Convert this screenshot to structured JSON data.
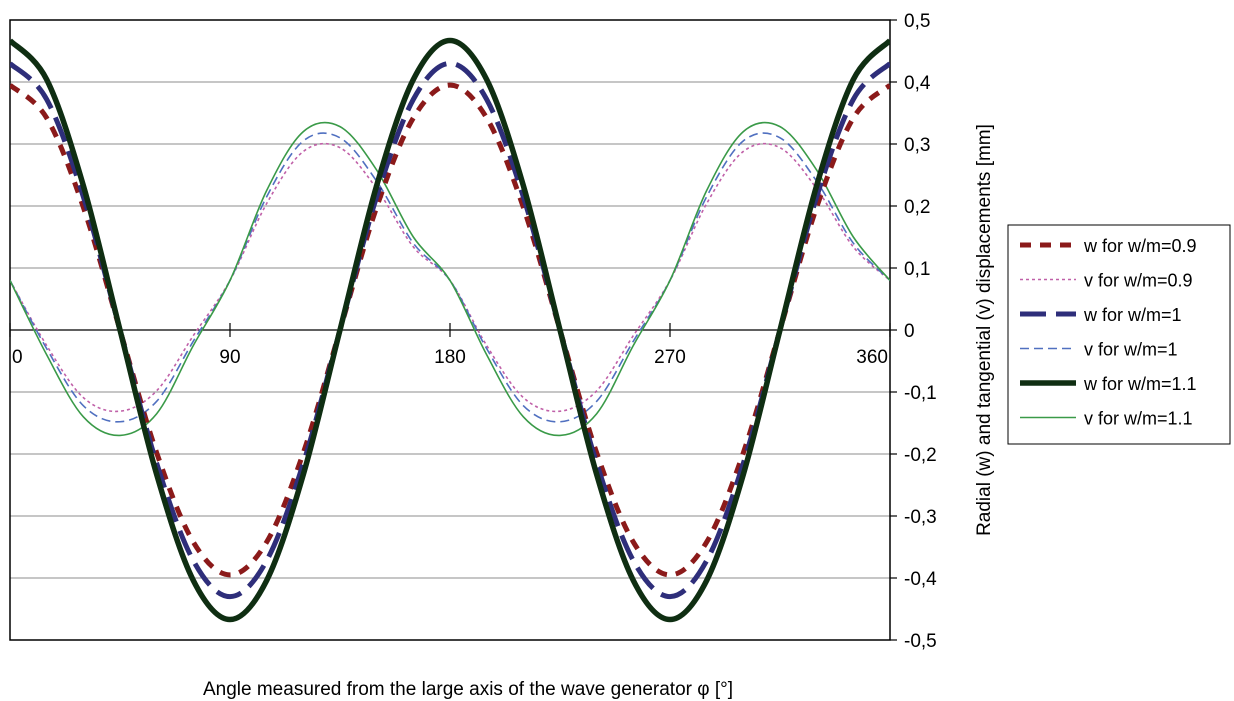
{
  "chart_data": {
    "type": "line",
    "xlabel": "Angle measured from the large axis of the wave generator φ [°]",
    "ylabel": "Radial (w) and tangential (v) displacements [mm]",
    "xlim": [
      0,
      360
    ],
    "ylim": [
      -0.5,
      0.5
    ],
    "x_ticks": [
      {
        "value": 0,
        "label": "0"
      },
      {
        "value": 90,
        "label": "90"
      },
      {
        "value": 180,
        "label": "180"
      },
      {
        "value": 270,
        "label": "270"
      },
      {
        "value": 360,
        "label": "360"
      }
    ],
    "y_ticks": [
      {
        "value": 0.5,
        "label": "0,5"
      },
      {
        "value": 0.4,
        "label": "0,4"
      },
      {
        "value": 0.3,
        "label": "0,3"
      },
      {
        "value": 0.2,
        "label": "0,2"
      },
      {
        "value": 0.1,
        "label": "0,1"
      },
      {
        "value": 0,
        "label": "0"
      },
      {
        "value": -0.1,
        "label": "-0,1"
      },
      {
        "value": -0.2,
        "label": "-0,2"
      },
      {
        "value": -0.3,
        "label": "-0,3"
      },
      {
        "value": -0.4,
        "label": "-0,4"
      },
      {
        "value": -0.5,
        "label": "-0,5"
      }
    ],
    "grid": {
      "horizontal": true,
      "vertical": false
    },
    "legend_position": "right",
    "x": [
      0,
      15,
      30,
      45,
      60,
      75,
      90,
      105,
      120,
      135,
      150,
      165,
      180,
      195,
      210,
      225,
      240,
      255,
      270,
      285,
      300,
      315,
      330,
      345,
      360
    ],
    "series": [
      {
        "name": "w  for w/m=0.9",
        "color": "#8b1a1a",
        "dash": "dashed",
        "weight": "thick",
        "values": [
          0.395,
          0.342,
          0.198,
          0.0,
          -0.198,
          -0.342,
          -0.395,
          -0.342,
          -0.198,
          0.0,
          0.198,
          0.342,
          0.395,
          0.342,
          0.198,
          0.0,
          -0.198,
          -0.342,
          -0.395,
          -0.342,
          -0.198,
          0.0,
          0.198,
          0.342,
          0.395
        ]
      },
      {
        "name": "v for w/m=0.9",
        "color": "#c060a8",
        "dash": "dotted",
        "weight": "thin",
        "values": [
          0.08,
          -0.025,
          -0.109,
          -0.131,
          -0.098,
          -0.009,
          0.08,
          0.204,
          0.288,
          0.294,
          0.228,
          0.134,
          0.08,
          -0.025,
          -0.109,
          -0.131,
          -0.098,
          -0.009,
          0.08,
          0.204,
          0.288,
          0.294,
          0.228,
          0.134,
          0.08
        ]
      },
      {
        "name": "w for w/m=1",
        "color": "#2e2e7a",
        "dash": "long-dash",
        "weight": "thick",
        "values": [
          0.43,
          0.372,
          0.215,
          0.0,
          -0.215,
          -0.372,
          -0.43,
          -0.372,
          -0.215,
          0.0,
          0.215,
          0.372,
          0.43,
          0.372,
          0.215,
          0.0,
          -0.215,
          -0.372,
          -0.43,
          -0.372,
          -0.215,
          0.0,
          0.215,
          0.372,
          0.43
        ]
      },
      {
        "name": "v for w/m=1",
        "color": "#5070c0",
        "dash": "dashed",
        "weight": "thin",
        "values": [
          0.08,
          -0.03,
          -0.122,
          -0.148,
          -0.115,
          -0.018,
          0.08,
          0.215,
          0.305,
          0.31,
          0.24,
          0.14,
          0.08,
          -0.03,
          -0.122,
          -0.148,
          -0.115,
          -0.018,
          0.08,
          0.215,
          0.305,
          0.31,
          0.24,
          0.14,
          0.08
        ]
      },
      {
        "name": "w for w/m=1.1",
        "color": "#0f2e12",
        "dash": "solid",
        "weight": "heavy",
        "values": [
          0.467,
          0.404,
          0.233,
          0.0,
          -0.233,
          -0.404,
          -0.467,
          -0.404,
          -0.233,
          0.0,
          0.233,
          0.404,
          0.467,
          0.404,
          0.233,
          0.0,
          -0.233,
          -0.404,
          -0.467,
          -0.404,
          -0.233,
          0.0,
          0.233,
          0.404,
          0.467
        ]
      },
      {
        "name": "v for w/m=1.1",
        "color": "#3a9a48",
        "dash": "solid",
        "weight": "thin",
        "values": [
          0.08,
          -0.04,
          -0.14,
          -0.17,
          -0.135,
          -0.025,
          0.08,
          0.225,
          0.32,
          0.328,
          0.258,
          0.15,
          0.08,
          -0.04,
          -0.14,
          -0.17,
          -0.135,
          -0.025,
          0.08,
          0.225,
          0.32,
          0.328,
          0.258,
          0.15,
          0.08
        ]
      }
    ]
  }
}
